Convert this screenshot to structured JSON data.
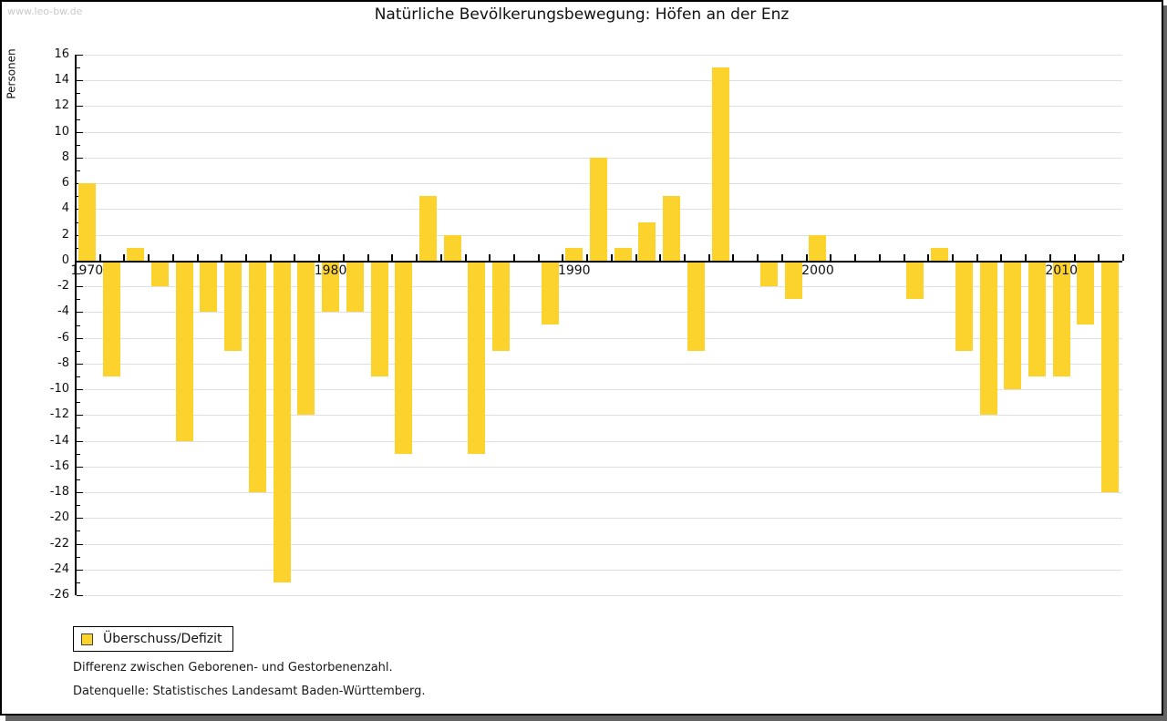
{
  "page": {
    "watermark": "www.leo-bw.de",
    "title": "Natürliche Bevölkerungsbewegung: Höfen an der Enz"
  },
  "legend": {
    "label": "Überschuss/Defizit"
  },
  "footnotes": {
    "line1": "Differenz zwischen Geborenen- und Gestorbenenzahl.",
    "line2": "Datenquelle: Statistisches Landesamt Baden-Württemberg."
  },
  "colors": {
    "bar": "#FCD32D",
    "grid": "#E0E0E0",
    "axis": "#000000",
    "watermark": "#C9C9C9"
  },
  "chart_data": {
    "type": "bar",
    "title": "Natürliche Bevölkerungsbewegung: Höfen an der Enz",
    "xlabel": "",
    "ylabel": "Personen",
    "ylim": [
      -26,
      16
    ],
    "ytick_step": 2,
    "grid": true,
    "legend_position": "bottom-left",
    "legend_entries": [
      "Überschuss/Defizit"
    ],
    "x_decade_labels": [
      1970,
      1980,
      1990,
      2000,
      2010
    ],
    "years": [
      1970,
      1971,
      1972,
      1973,
      1974,
      1975,
      1976,
      1977,
      1978,
      1979,
      1980,
      1981,
      1982,
      1983,
      1984,
      1985,
      1986,
      1987,
      1988,
      1989,
      1990,
      1991,
      1992,
      1993,
      1994,
      1995,
      1996,
      1997,
      1998,
      1999,
      2000,
      2001,
      2002,
      2003,
      2004,
      2005,
      2006,
      2007,
      2008,
      2009,
      2010,
      2011,
      2012
    ],
    "values": [
      6,
      -9,
      1,
      -2,
      -14,
      -4,
      -7,
      -18,
      -25,
      -12,
      -4,
      -4,
      -9,
      -15,
      5,
      2,
      -15,
      -7,
      0,
      -5,
      1,
      8,
      1,
      3,
      5,
      -7,
      15,
      0,
      -2,
      -3,
      2,
      0,
      0,
      0,
      -3,
      1,
      -7,
      -12,
      -10,
      -9,
      -9,
      -5,
      -18
    ]
  }
}
